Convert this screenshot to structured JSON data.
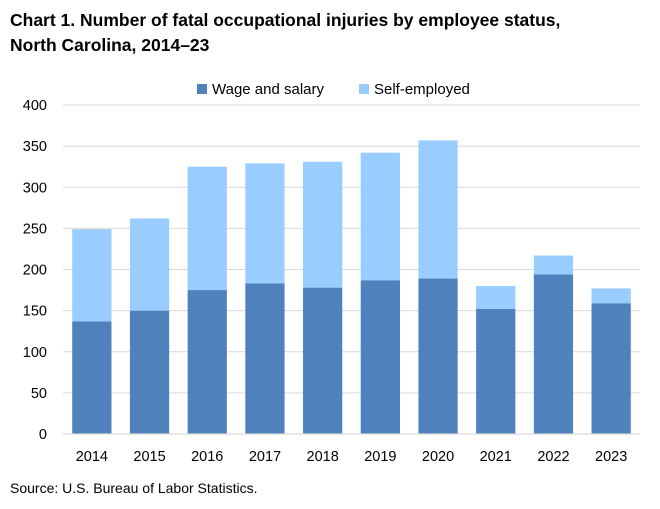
{
  "title_line1": "Chart 1. Number of fatal occupational injuries by employee status,",
  "title_line2": "North Carolina, 2014–23",
  "source": "Source: U.S. Bureau of Labor Statistics.",
  "colors": {
    "wage": "#4F81BD",
    "self": "#99CCFF",
    "grid": "#D9D9D9",
    "axis": "#000000"
  },
  "chart_data": {
    "type": "bar",
    "stacked": true,
    "title": "Chart 1. Number of fatal occupational injuries by employee status, North Carolina, 2014–23",
    "categories": [
      "2014",
      "2015",
      "2016",
      "2017",
      "2018",
      "2019",
      "2020",
      "2021",
      "2022",
      "2023"
    ],
    "series": [
      {
        "name": "Wage and salary",
        "color": "#4F81BD",
        "values": [
          137,
          150,
          175,
          183,
          178,
          187,
          189,
          152,
          194,
          159
        ]
      },
      {
        "name": "Self-employed",
        "color": "#99CCFF",
        "values": [
          112,
          112,
          150,
          146,
          153,
          155,
          168,
          28,
          23,
          18
        ]
      }
    ],
    "ylim": [
      0,
      400
    ],
    "yticks": [
      0,
      50,
      100,
      150,
      200,
      250,
      300,
      350,
      400
    ],
    "grid": true,
    "legend_position": "top-center",
    "xlabel": "",
    "ylabel": ""
  }
}
